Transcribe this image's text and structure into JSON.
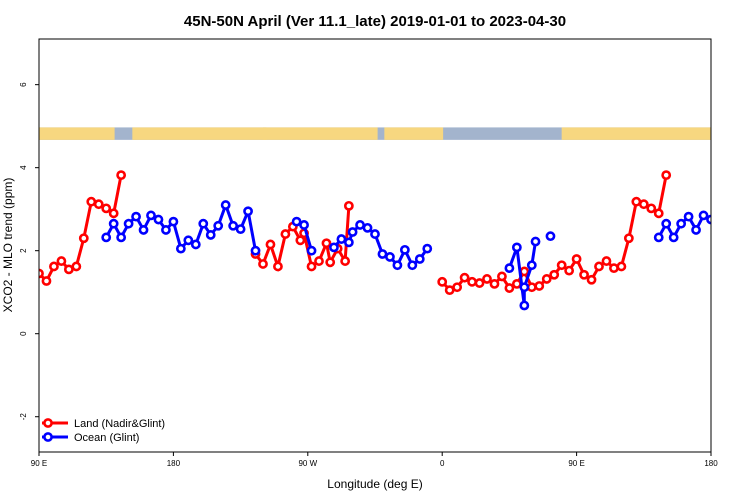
{
  "chart_data": {
    "type": "line",
    "title": "45N-50N April (Ver 11.1_late)   2019-01-01 to 2023-04-30",
    "xlabel": "Longitude (deg E)",
    "ylabel": "XCO2 - MLO trend (ppm)",
    "xlim": [
      90,
      450
    ],
    "ylim": [
      -2.85,
      7.1
    ],
    "x_ticks": [
      90,
      162,
      234,
      306,
      378,
      450
    ],
    "x_tick_labels": [
      "90 E",
      "180",
      "90 W",
      "0",
      "90 E",
      "180"
    ],
    "y_ticks": [
      -2,
      0,
      2,
      4,
      6
    ],
    "y_tick_labels": [
      "-2",
      "0",
      "2",
      "4",
      "6"
    ],
    "legend_position": "bottom-left",
    "land_ocean_strip": {
      "y_range": [
        4.67,
        4.97
      ],
      "land_color": "#f7d780",
      "ocean_color": "#a3b4cd",
      "land_spans": [
        [
          90,
          130.5
        ],
        [
          140,
          211.8
        ],
        [
          210,
          271.4
        ],
        [
          275,
          306.5
        ],
        [
          370,
          450
        ]
      ]
    },
    "series": [
      {
        "name": "Land (Nadir&Glint)",
        "color": "#ff0000",
        "points": [
          [
            [
              90,
              1.45
            ],
            [
              94,
              1.27
            ],
            [
              98,
              1.62
            ],
            [
              102,
              1.75
            ],
            [
              106,
              1.55
            ],
            [
              110,
              1.62
            ],
            [
              114,
              2.3
            ],
            [
              118,
              3.18
            ],
            [
              122,
              3.12
            ],
            [
              126,
              3.02
            ],
            [
              130,
              2.9
            ],
            [
              134,
              3.82
            ]
          ],
          [
            [
              206,
              1.92
            ],
            [
              210,
              1.68
            ],
            [
              214,
              2.15
            ],
            [
              218,
              1.62
            ],
            [
              222,
              2.4
            ],
            [
              226,
              2.58
            ],
            [
              230,
              2.25
            ],
            [
              232,
              2.42
            ],
            [
              236,
              1.62
            ],
            [
              240,
              1.75
            ],
            [
              244,
              2.18
            ],
            [
              246,
              1.72
            ],
            [
              250,
              2.05
            ],
            [
              254,
              1.75
            ],
            [
              256,
              3.08
            ]
          ],
          [
            [
              306,
              1.25
            ],
            [
              310,
              1.05
            ],
            [
              314,
              1.12
            ],
            [
              318,
              1.35
            ],
            [
              322,
              1.25
            ],
            [
              326,
              1.22
            ],
            [
              330,
              1.32
            ],
            [
              334,
              1.2
            ],
            [
              338,
              1.38
            ],
            [
              342,
              1.1
            ],
            [
              346,
              1.2
            ],
            [
              350,
              1.5
            ],
            [
              354,
              1.12
            ],
            [
              358,
              1.15
            ],
            [
              362,
              1.32
            ],
            [
              366,
              1.42
            ],
            [
              370,
              1.65
            ],
            [
              374,
              1.52
            ],
            [
              378,
              1.8
            ],
            [
              382,
              1.42
            ],
            [
              386,
              1.3
            ],
            [
              390,
              1.62
            ],
            [
              394,
              1.75
            ],
            [
              398,
              1.58
            ],
            [
              402,
              1.62
            ],
            [
              406,
              2.3
            ],
            [
              410,
              3.18
            ],
            [
              414,
              3.12
            ],
            [
              418,
              3.02
            ],
            [
              422,
              2.9
            ],
            [
              426,
              3.82
            ]
          ]
        ]
      },
      {
        "name": "Ocean (Glint)",
        "color": "#0000ff",
        "points": [
          [
            [
              126,
              2.32
            ],
            [
              130,
              2.65
            ],
            [
              134,
              2.32
            ],
            [
              138,
              2.65
            ],
            [
              142,
              2.82
            ],
            [
              146,
              2.5
            ],
            [
              150,
              2.85
            ],
            [
              154,
              2.75
            ],
            [
              158,
              2.5
            ],
            [
              162,
              2.7
            ],
            [
              166,
              2.05
            ],
            [
              170,
              2.25
            ],
            [
              174,
              2.15
            ],
            [
              178,
              2.65
            ],
            [
              182,
              2.38
            ],
            [
              186,
              2.6
            ],
            [
              190,
              3.1
            ],
            [
              194,
              2.6
            ],
            [
              198,
              2.52
            ],
            [
              202,
              2.95
            ],
            [
              206,
              2.0
            ]
          ],
          [
            [
              228,
              2.7
            ],
            [
              232,
              2.62
            ],
            [
              236,
              2.0
            ]
          ],
          [
            [
              248,
              2.08
            ],
            [
              252,
              2.28
            ],
            [
              256,
              2.2
            ],
            [
              258,
              2.45
            ],
            [
              262,
              2.62
            ],
            [
              266,
              2.55
            ],
            [
              270,
              2.4
            ],
            [
              274,
              1.92
            ],
            [
              278,
              1.85
            ],
            [
              282,
              1.65
            ],
            [
              286,
              2.02
            ],
            [
              290,
              1.65
            ],
            [
              294,
              1.8
            ],
            [
              298,
              2.05
            ]
          ],
          [
            [
              342,
              1.58
            ],
            [
              346,
              2.08
            ],
            [
              350,
              0.68
            ],
            [
              350,
              1.12
            ],
            [
              354,
              1.65
            ],
            [
              356,
              2.22
            ]
          ],
          [
            [
              364,
              2.35
            ]
          ],
          [
            [
              422,
              2.32
            ],
            [
              426,
              2.65
            ],
            [
              430,
              2.32
            ],
            [
              434,
              2.65
            ],
            [
              438,
              2.82
            ],
            [
              442,
              2.5
            ],
            [
              446,
              2.85
            ],
            [
              450,
              2.75
            ],
            [
              454,
              2.5
            ]
          ]
        ]
      }
    ]
  }
}
